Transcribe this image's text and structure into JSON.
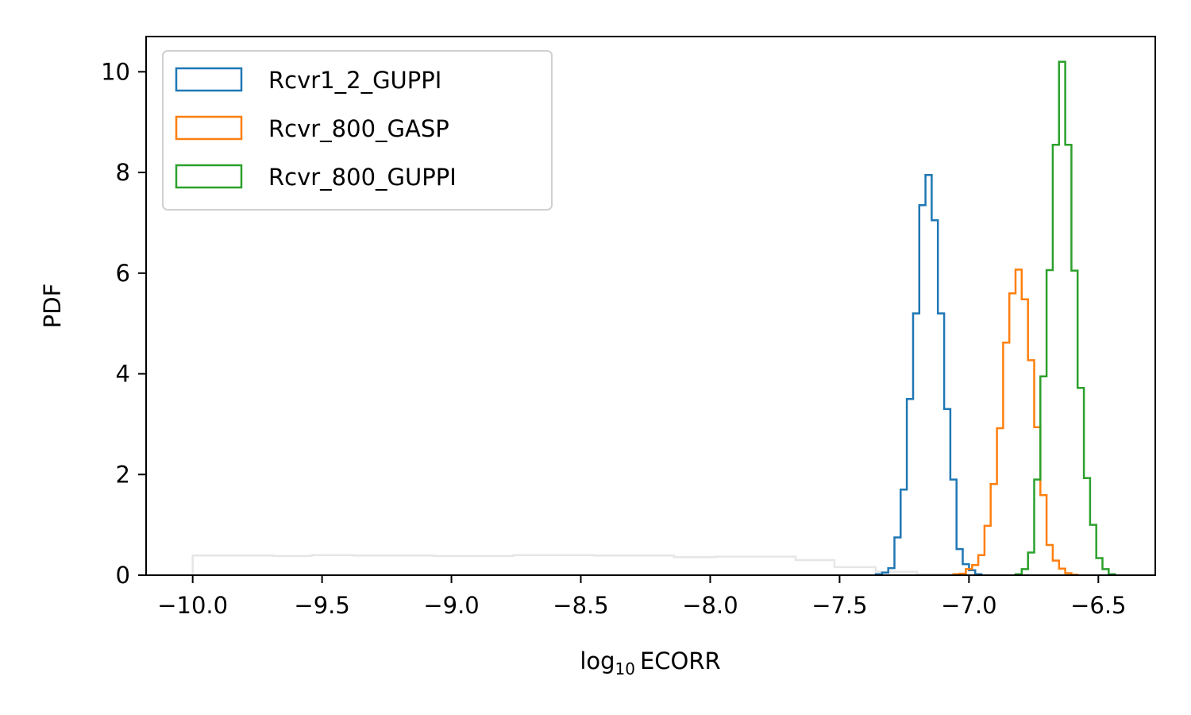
{
  "chart_data": {
    "type": "histogram",
    "xlabel_main": "log",
    "xlabel_sub": "10",
    "xlabel_tail": "ECORR",
    "ylabel": "PDF",
    "xlim": [
      -10.18,
      -6.28
    ],
    "ylim": [
      0,
      10.7
    ],
    "xticks": [
      -10.0,
      -9.5,
      -9.0,
      -8.5,
      -8.0,
      -7.5,
      -7.0,
      -6.5
    ],
    "xtick_labels": [
      "−10.0",
      "−9.5",
      "−9.0",
      "−8.5",
      "−8.0",
      "−7.5",
      "−7.0",
      "−6.5"
    ],
    "yticks": [
      0,
      2,
      4,
      6,
      8,
      10
    ],
    "ytick_labels": [
      "0",
      "2",
      "4",
      "6",
      "8",
      "10"
    ],
    "legend_position": "top-left",
    "prior": {
      "color": "#e6e6e6",
      "edges": [
        -10.0,
        -9.69,
        -9.54,
        -9.38,
        -9.07,
        -8.76,
        -8.45,
        -8.14,
        -7.98,
        -7.67,
        -7.52,
        -7.36,
        -7.2,
        -7.05
      ],
      "values": [
        0.39,
        0.38,
        0.4,
        0.39,
        0.38,
        0.4,
        0.39,
        0.36,
        0.37,
        0.3,
        0.16,
        0.07,
        0.02
      ]
    },
    "series": [
      {
        "name": "Rcvr1_2_GUPPI",
        "color": "#1f77b4",
        "edges": [
          -7.36,
          -7.336,
          -7.312,
          -7.288,
          -7.264,
          -7.24,
          -7.216,
          -7.192,
          -7.168,
          -7.144,
          -7.12,
          -7.096,
          -7.072,
          -7.048,
          -7.024,
          -7.0,
          -6.976,
          -6.952
        ],
        "values": [
          0.02,
          0.05,
          0.14,
          0.75,
          1.7,
          3.5,
          5.2,
          7.35,
          7.95,
          7.05,
          5.2,
          3.3,
          1.9,
          0.52,
          0.22,
          0.1,
          0.02
        ]
      },
      {
        "name": "Rcvr_800_GASP",
        "color": "#ff7f0e",
        "edges": [
          -7.06,
          -7.036,
          -7.012,
          -6.988,
          -6.964,
          -6.94,
          -6.916,
          -6.892,
          -6.868,
          -6.844,
          -6.82,
          -6.796,
          -6.772,
          -6.748,
          -6.724,
          -6.7,
          -6.676,
          -6.652,
          -6.628,
          -6.604,
          -6.58
        ],
        "values": [
          0.02,
          0.03,
          0.12,
          0.2,
          0.4,
          0.98,
          1.81,
          2.92,
          4.62,
          5.6,
          6.07,
          5.48,
          4.27,
          2.94,
          1.59,
          0.6,
          0.29,
          0.13,
          0.04,
          0.01
        ]
      },
      {
        "name": "Rcvr_800_GUPPI",
        "color": "#2ca02c",
        "edges": [
          -6.82,
          -6.796,
          -6.772,
          -6.748,
          -6.724,
          -6.7,
          -6.676,
          -6.652,
          -6.628,
          -6.604,
          -6.58,
          -6.556,
          -6.532,
          -6.508,
          -6.484,
          -6.46,
          -6.436
        ],
        "values": [
          0.02,
          0.12,
          0.45,
          1.9,
          3.95,
          6.06,
          8.55,
          10.2,
          8.55,
          6.05,
          3.72,
          1.93,
          1.0,
          0.34,
          0.12,
          0.02
        ]
      }
    ]
  }
}
